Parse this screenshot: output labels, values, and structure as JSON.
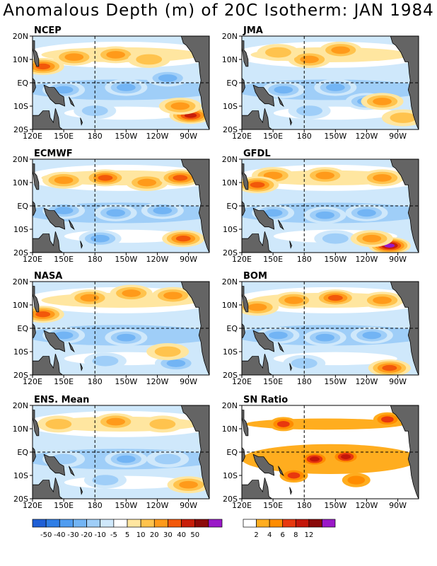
{
  "title": "Anomalous Depth (m) of 20C Isotherm: JAN 1984",
  "chart_data": {
    "type": "heatmap",
    "title": "Anomalous Depth (m) of 20C Isotherm: JAN 1984",
    "xticks": [
      "120E",
      "150E",
      "180",
      "150W",
      "120W",
      "90W"
    ],
    "yticks": [
      "20N",
      "10N",
      "EQ",
      "10S",
      "20S"
    ],
    "xlim": [
      "120E",
      "70W"
    ],
    "ylim": [
      "20S",
      "20N"
    ],
    "reference_lines": [
      "180",
      "EQ"
    ],
    "panels": [
      {
        "name": "NCEP",
        "warm": [
          {
            "lon": 160,
            "lat": 11,
            "v": 20
          },
          {
            "lon": 200,
            "lat": 12,
            "v": 25
          },
          {
            "lon": 130,
            "lat": 7,
            "v": 30
          },
          {
            "lon": 232,
            "lat": 10,
            "v": 15
          },
          {
            "lon": 272,
            "lat": -14,
            "v": 45
          },
          {
            "lon": 262,
            "lat": -10,
            "v": 20
          }
        ],
        "cool": [
          {
            "lon": 150,
            "lat": -3,
            "v": -20
          },
          {
            "lon": 210,
            "lat": -2,
            "v": -25
          },
          {
            "lon": 250,
            "lat": 2,
            "v": -20
          },
          {
            "lon": 180,
            "lat": -12,
            "v": -15
          }
        ]
      },
      {
        "name": "JMA",
        "warm": [
          {
            "lon": 185,
            "lat": 10,
            "v": 25
          },
          {
            "lon": 215,
            "lat": 14,
            "v": 20
          },
          {
            "lon": 155,
            "lat": 13,
            "v": 10
          },
          {
            "lon": 255,
            "lat": -8,
            "v": 20
          },
          {
            "lon": 275,
            "lat": -15,
            "v": 15
          }
        ],
        "cool": [
          {
            "lon": 160,
            "lat": -3,
            "v": -20
          },
          {
            "lon": 210,
            "lat": -2,
            "v": -25
          },
          {
            "lon": 240,
            "lat": -8,
            "v": -20
          },
          {
            "lon": 185,
            "lat": -12,
            "v": -15
          }
        ]
      },
      {
        "name": "ECMWF",
        "warm": [
          {
            "lon": 150,
            "lat": 11,
            "v": 25
          },
          {
            "lon": 190,
            "lat": 12,
            "v": 30
          },
          {
            "lon": 230,
            "lat": 10,
            "v": 25
          },
          {
            "lon": 262,
            "lat": 12,
            "v": 30
          },
          {
            "lon": 265,
            "lat": -14,
            "v": 30
          }
        ],
        "cool": [
          {
            "lon": 150,
            "lat": -2,
            "v": -25
          },
          {
            "lon": 200,
            "lat": -3,
            "v": -25
          },
          {
            "lon": 245,
            "lat": -2,
            "v": -20
          },
          {
            "lon": 185,
            "lat": -14,
            "v": -20
          }
        ]
      },
      {
        "name": "GFDL",
        "warm": [
          {
            "lon": 150,
            "lat": 13,
            "v": 25
          },
          {
            "lon": 200,
            "lat": 13,
            "v": 25
          },
          {
            "lon": 255,
            "lat": 12,
            "v": 25
          },
          {
            "lon": 135,
            "lat": 9,
            "v": 30
          },
          {
            "lon": 262,
            "lat": -17,
            "v": 50
          },
          {
            "lon": 245,
            "lat": -14,
            "v": 20
          }
        ],
        "cool": [
          {
            "lon": 150,
            "lat": -3,
            "v": -20
          },
          {
            "lon": 200,
            "lat": -4,
            "v": -25
          },
          {
            "lon": 240,
            "lat": -3,
            "v": -20
          },
          {
            "lon": 210,
            "lat": -14,
            "v": -15
          }
        ]
      },
      {
        "name": "NASA",
        "warm": [
          {
            "lon": 130,
            "lat": 6,
            "v": 30
          },
          {
            "lon": 175,
            "lat": 13,
            "v": 20
          },
          {
            "lon": 215,
            "lat": 15,
            "v": 25
          },
          {
            "lon": 255,
            "lat": 14,
            "v": 20
          },
          {
            "lon": 250,
            "lat": -10,
            "v": 15
          }
        ],
        "cool": [
          {
            "lon": 150,
            "lat": -3,
            "v": -20
          },
          {
            "lon": 210,
            "lat": -4,
            "v": -25
          },
          {
            "lon": 258,
            "lat": -15,
            "v": -25
          },
          {
            "lon": 190,
            "lat": -14,
            "v": -15
          }
        ]
      },
      {
        "name": "BOM",
        "warm": [
          {
            "lon": 135,
            "lat": 9,
            "v": 25
          },
          {
            "lon": 170,
            "lat": 12,
            "v": 25
          },
          {
            "lon": 210,
            "lat": 13,
            "v": 30
          },
          {
            "lon": 255,
            "lat": 12,
            "v": 20
          },
          {
            "lon": 262,
            "lat": -17,
            "v": 30
          }
        ],
        "cool": [
          {
            "lon": 155,
            "lat": -3,
            "v": -20
          },
          {
            "lon": 200,
            "lat": -4,
            "v": -25
          },
          {
            "lon": 245,
            "lat": -3,
            "v": -20
          },
          {
            "lon": 180,
            "lat": -15,
            "v": -15
          }
        ]
      },
      {
        "name": "ENS. Mean",
        "warm": [
          {
            "lon": 145,
            "lat": 12,
            "v": 15
          },
          {
            "lon": 200,
            "lat": 13,
            "v": 20
          },
          {
            "lon": 245,
            "lat": 12,
            "v": 15
          },
          {
            "lon": 270,
            "lat": -14,
            "v": 25
          }
        ],
        "cool": [
          {
            "lon": 150,
            "lat": -3,
            "v": -15
          },
          {
            "lon": 210,
            "lat": -3,
            "v": -20
          },
          {
            "lon": 250,
            "lat": -3,
            "v": -15
          },
          {
            "lon": 190,
            "lat": -12,
            "v": -10
          }
        ]
      },
      {
        "name": "SN Ratio",
        "warm": [
          {
            "lon": 190,
            "lat": -3,
            "v": 10
          },
          {
            "lon": 160,
            "lat": 12,
            "v": 6
          },
          {
            "lon": 220,
            "lat": -2,
            "v": 8
          },
          {
            "lon": 260,
            "lat": 14,
            "v": 6
          },
          {
            "lon": 170,
            "lat": -10,
            "v": 6
          },
          {
            "lon": 230,
            "lat": -12,
            "v": 4
          }
        ],
        "cool": []
      }
    ],
    "colorbars": [
      {
        "name": "anomaly",
        "labels": [
          "-50",
          "-40",
          "-30",
          "-20",
          "-10",
          "-5",
          "5",
          "10",
          "20",
          "30",
          "40",
          "50"
        ],
        "colors": [
          "#1f5fd6",
          "#2f7ee6",
          "#4f9cf0",
          "#72b4f4",
          "#9fcef8",
          "#cfe8fb",
          "#ffffff",
          "#ffe6a0",
          "#ffc34d",
          "#ff9a1a",
          "#f2580a",
          "#c81e0a",
          "#8c0a0a",
          "#9a18c8"
        ]
      },
      {
        "name": "sn_ratio",
        "labels": [
          "2",
          "4",
          "6",
          "8",
          "12"
        ],
        "colors": [
          "#ffffff",
          "#ffad1f",
          "#ff8c00",
          "#e8380e",
          "#c4160a",
          "#8a0a0a",
          "#9a18c8"
        ]
      }
    ]
  }
}
